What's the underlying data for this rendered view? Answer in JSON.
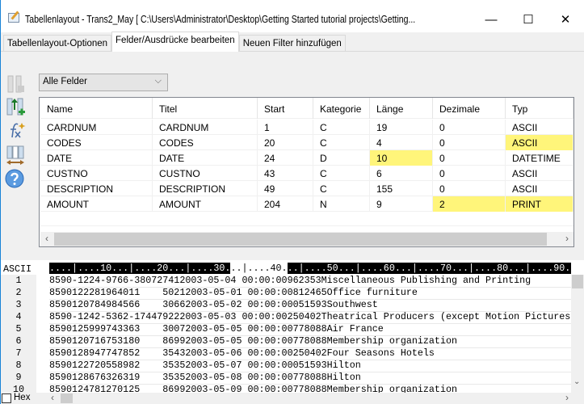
{
  "window": {
    "title": "Tabellenlayout - Trans2_May [ C:\\Users\\Administrator\\Desktop\\Getting Started tutorial projects\\Getting...",
    "minimize": "—",
    "maximize": "☐",
    "close": "✕"
  },
  "tabs": [
    {
      "label": "Tabellenlayout-Optionen"
    },
    {
      "label": "Felder/Ausdrücke bearbeiten",
      "active": true
    },
    {
      "label": "Neuen Filter hinzufügen"
    }
  ],
  "filter": {
    "selected": "Alle Felder"
  },
  "fields": {
    "columns": [
      "Name",
      "Titel",
      "Start",
      "Kategorie",
      "Länge",
      "Dezimale",
      "Typ"
    ],
    "rows": [
      [
        "CARDNUM",
        "CARDNUM",
        "1",
        "C",
        "19",
        "0",
        "ASCII"
      ],
      [
        "CODES",
        "CODES",
        "20",
        "C",
        "4",
        "0",
        "ASCII"
      ],
      [
        "DATE",
        "DATE",
        "24",
        "D",
        "10",
        "0",
        "DATETIME"
      ],
      [
        "CUSTNO",
        "CUSTNO",
        "43",
        "C",
        "6",
        "0",
        "ASCII"
      ],
      [
        "DESCRIPTION",
        "DESCRIPTION",
        "49",
        "C",
        "155",
        "0",
        "ASCII"
      ],
      [
        "AMOUNT",
        "AMOUNT",
        "204",
        "N",
        "9",
        "2",
        "PRINT"
      ]
    ],
    "highlight_color": "#fff57a"
  },
  "preview": {
    "mode": "ASCII",
    "ruler": [
      "....|....10...|....20...|....30.",
      "..|....40.",
      "..|....50...|....60...|....70...|....80...|....90."
    ],
    "lines": [
      {
        "n": "1",
        "text": "8590-1224-9766-380727412003-05-04 00:00:00962353Miscellaneous Publishing and Printing"
      },
      {
        "n": "2",
        "text": "8590122281964011    50212003-05-01 00:00:00812465Office furniture"
      },
      {
        "n": "3",
        "text": "8590120784984566    30662003-05-02 00:00:00051593Southwest"
      },
      {
        "n": "4",
        "text": "8590-1242-5362-174479222003-05-03 00:00:00250402Theatrical Producers (except Motion Pictures"
      },
      {
        "n": "5",
        "text": "8590125999743363    30072003-05-05 00:00:00778088Air France"
      },
      {
        "n": "6",
        "text": "8590120716753180    86992003-05-05 00:00:00778088Membership organization"
      },
      {
        "n": "7",
        "text": "8590128947747852    35432003-05-06 00:00:00250402Four Seasons Hotels"
      },
      {
        "n": "8",
        "text": "8590122720558982    35352003-05-07 00:00:00051593Hilton"
      },
      {
        "n": "9",
        "text": "8590128676326319    35352003-05-08 00:00:00778088Hilton"
      },
      {
        "n": "10",
        "text": "8590124781270125    86992003-05-09 00:00:00778088Membership organization"
      }
    ],
    "hex_label": "Hex",
    "hex_checked": false
  }
}
